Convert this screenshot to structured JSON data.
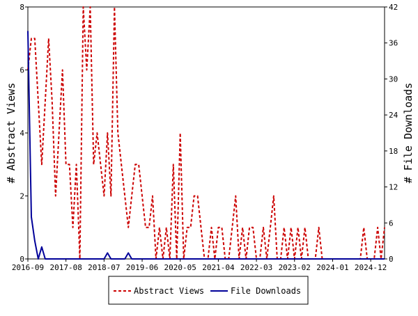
{
  "chart_data": {
    "type": "line",
    "x_ticks": [
      "2016-09",
      "2017-08",
      "2018-07",
      "2019-06",
      "2020-05",
      "2021-04",
      "2022-03",
      "2023-02",
      "2024-01",
      "2024-12"
    ],
    "xlim": [
      "2016-09",
      "2025-04"
    ],
    "ylabel_left": "# Abstract Views",
    "ylabel_right": "# File Downloads",
    "ylim_left": [
      0,
      8
    ],
    "ylim_right": [
      0,
      42
    ],
    "yticks_left": [
      "0",
      "2",
      "4",
      "6",
      "8"
    ],
    "yticks_right": [
      "0",
      "6",
      "12",
      "18",
      "24",
      "30",
      "36",
      "42"
    ],
    "grid": false,
    "legend_position": "bottom-center",
    "series": [
      {
        "name": "Abstract Views",
        "axis": "left",
        "color": "#cc0000",
        "style": "dashed",
        "points": [
          [
            "2016-09",
            6
          ],
          [
            "2016-10",
            7
          ],
          [
            "2016-11",
            7
          ],
          [
            "2016-12",
            5
          ],
          [
            "2017-01",
            3
          ],
          [
            "2017-02",
            5
          ],
          [
            "2017-03",
            7
          ],
          [
            "2017-04",
            5
          ],
          [
            "2017-05",
            2
          ],
          [
            "2017-06",
            4
          ],
          [
            "2017-07",
            6
          ],
          [
            "2017-08",
            3
          ],
          [
            "2017-09",
            3
          ],
          [
            "2017-10",
            1
          ],
          [
            "2017-11",
            3
          ],
          [
            "2017-12",
            0
          ],
          [
            "2018-01",
            8
          ],
          [
            "2018-02",
            6
          ],
          [
            "2018-03",
            8
          ],
          [
            "2018-04",
            3
          ],
          [
            "2018-05",
            4
          ],
          [
            "2018-06",
            3
          ],
          [
            "2018-07",
            2
          ],
          [
            "2018-08",
            4
          ],
          [
            "2018-09",
            2
          ],
          [
            "2018-10",
            8
          ],
          [
            "2018-11",
            4
          ],
          [
            "2018-12",
            3
          ],
          [
            "2019-01",
            2
          ],
          [
            "2019-02",
            1
          ],
          [
            "2019-03",
            2
          ],
          [
            "2019-04",
            3
          ],
          [
            "2019-05",
            3
          ],
          [
            "2019-06",
            2
          ],
          [
            "2019-07",
            1
          ],
          [
            "2019-08",
            1
          ],
          [
            "2019-09",
            2
          ],
          [
            "2019-10",
            0
          ],
          [
            "2019-11",
            1
          ],
          [
            "2019-12",
            0
          ],
          [
            "2020-01",
            1
          ],
          [
            "2020-02",
            0
          ],
          [
            "2020-03",
            3
          ],
          [
            "2020-04",
            0
          ],
          [
            "2020-05",
            4
          ],
          [
            "2020-06",
            0
          ],
          [
            "2020-07",
            1
          ],
          [
            "2020-08",
            1
          ],
          [
            "2020-09",
            2
          ],
          [
            "2020-10",
            2
          ],
          [
            "2020-11",
            1
          ],
          [
            "2020-12",
            0
          ],
          [
            "2021-01",
            0
          ],
          [
            "2021-02",
            1
          ],
          [
            "2021-03",
            0
          ],
          [
            "2021-04",
            1
          ],
          [
            "2021-05",
            1
          ],
          [
            "2021-06",
            0
          ],
          [
            "2021-07",
            0
          ],
          [
            "2021-08",
            1
          ],
          [
            "2021-09",
            2
          ],
          [
            "2021-10",
            0
          ],
          [
            "2021-11",
            1
          ],
          [
            "2021-12",
            0
          ],
          [
            "2022-01",
            1
          ],
          [
            "2022-02",
            1
          ],
          [
            "2022-03",
            0
          ],
          [
            "2022-04",
            0
          ],
          [
            "2022-05",
            1
          ],
          [
            "2022-06",
            0
          ],
          [
            "2022-07",
            1
          ],
          [
            "2022-08",
            2
          ],
          [
            "2022-09",
            0
          ],
          [
            "2022-10",
            0
          ],
          [
            "2022-11",
            1
          ],
          [
            "2022-12",
            0
          ],
          [
            "2023-01",
            1
          ],
          [
            "2023-02",
            0
          ],
          [
            "2023-03",
            1
          ],
          [
            "2023-04",
            0
          ],
          [
            "2023-05",
            1
          ],
          [
            "2023-06",
            0
          ],
          [
            "2023-07",
            0
          ],
          [
            "2023-08",
            0
          ],
          [
            "2023-09",
            1
          ],
          [
            "2023-10",
            0
          ],
          [
            "2023-11",
            0
          ],
          [
            "2023-12",
            0
          ],
          [
            "2024-01",
            0
          ],
          [
            "2024-02",
            0
          ],
          [
            "2024-03",
            0
          ],
          [
            "2024-04",
            0
          ],
          [
            "2024-05",
            0
          ],
          [
            "2024-06",
            0
          ],
          [
            "2024-07",
            0
          ],
          [
            "2024-08",
            0
          ],
          [
            "2024-09",
            0
          ],
          [
            "2024-10",
            1
          ],
          [
            "2024-11",
            0
          ],
          [
            "2024-12",
            0
          ],
          [
            "2025-01",
            0
          ],
          [
            "2025-02",
            1
          ],
          [
            "2025-03",
            0
          ],
          [
            "2025-04",
            1
          ]
        ]
      },
      {
        "name": "File Downloads",
        "axis": "right",
        "color": "#000099",
        "style": "solid",
        "points": [
          [
            "2016-09",
            38
          ],
          [
            "2016-10",
            7
          ],
          [
            "2016-11",
            3
          ],
          [
            "2016-12",
            0
          ],
          [
            "2017-01",
            2
          ],
          [
            "2017-02",
            0
          ],
          [
            "2017-03",
            0
          ],
          [
            "2017-04",
            0
          ],
          [
            "2017-05",
            0
          ],
          [
            "2017-06",
            0
          ],
          [
            "2017-07",
            0
          ],
          [
            "2017-08",
            0
          ],
          [
            "2018-01",
            0
          ],
          [
            "2018-06",
            0
          ],
          [
            "2018-07",
            0
          ],
          [
            "2018-08",
            1
          ],
          [
            "2018-09",
            0
          ],
          [
            "2019-01",
            0
          ],
          [
            "2019-02",
            1
          ],
          [
            "2019-03",
            0
          ],
          [
            "2020-01",
            0
          ],
          [
            "2021-01",
            0
          ],
          [
            "2022-01",
            0
          ],
          [
            "2023-01",
            0
          ],
          [
            "2024-01",
            0
          ],
          [
            "2025-01",
            0
          ],
          [
            "2025-04",
            0
          ]
        ]
      }
    ]
  }
}
